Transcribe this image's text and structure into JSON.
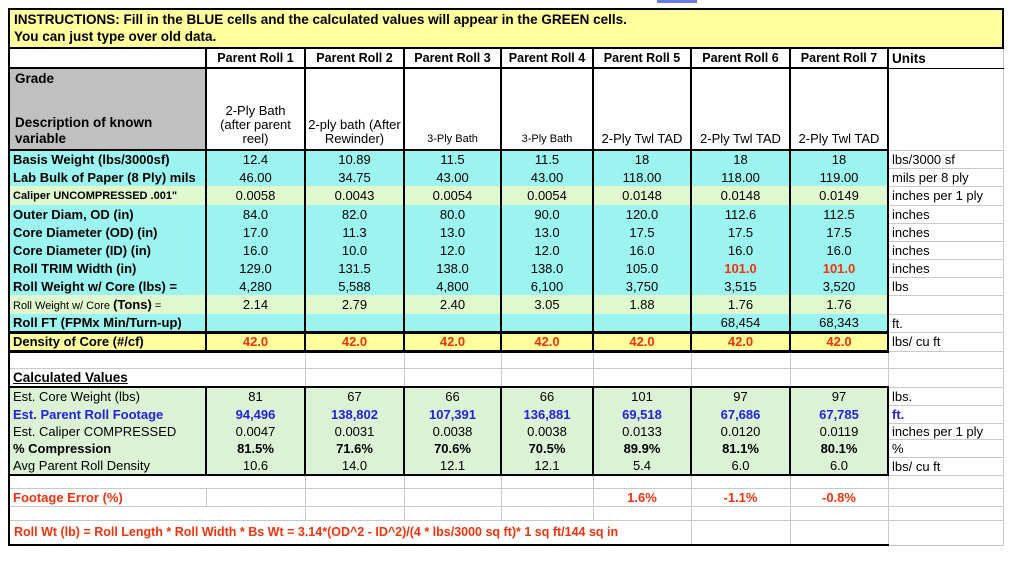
{
  "banner": {
    "line1": "INSTRUCTIONS: Fill in the BLUE cells and the calculated values will appear in the GREEN cells.",
    "line2": "You can just type over old data."
  },
  "header": {
    "columns": [
      "Parent Roll 1",
      "Parent Roll 2",
      "Parent Roll 3",
      "Parent Roll 4",
      "Parent Roll 5",
      "Parent Roll 6",
      "Parent Roll 7"
    ],
    "units": "Units"
  },
  "grade": {
    "label_line1": "Grade",
    "label_line2": "Description of known variable",
    "values": [
      "2-Ply Bath (after parent reel)",
      "2-ply bath (After Rewinder)",
      "3-Ply Bath",
      "3-Ply Bath",
      "2-Ply Twl TAD",
      "2-Ply Twl TAD",
      "2-Ply Twl TAD"
    ]
  },
  "rows": [
    {
      "label": "Basis Weight (lbs/3000sf)",
      "values": [
        "12.4",
        "10.89",
        "11.5",
        "11.5",
        "18",
        "18",
        "18"
      ],
      "unit": "lbs/3000 sf",
      "bg": "cyan"
    },
    {
      "label": "Lab Bulk of Paper (8 Ply) mils",
      "values": [
        "46.00",
        "34.75",
        "43.00",
        "43.00",
        "118.00",
        "118.00",
        "119.00"
      ],
      "unit": "mils per 8 ply",
      "bg": "cyan"
    },
    {
      "label": "Caliper UNCOMPRESSED .001\"",
      "values": [
        "0.0058",
        "0.0043",
        "0.0054",
        "0.0054",
        "0.0148",
        "0.0148",
        "0.0149"
      ],
      "unit": "inches per 1 ply",
      "bg": "pgreen",
      "label_small": true
    },
    {
      "label": "Outer Diam, OD (in)",
      "values": [
        "84.0",
        "82.0",
        "80.0",
        "90.0",
        "120.0",
        "112.6",
        "112.5"
      ],
      "unit": "inches",
      "bg": "cyan"
    },
    {
      "label": "Core Diameter (OD) (in)",
      "values": [
        "17.0",
        "11.3",
        "13.0",
        "13.0",
        "17.5",
        "17.5",
        "17.5"
      ],
      "unit": "inches",
      "bg": "cyan"
    },
    {
      "label": "Core Diameter (ID)  (in)",
      "values": [
        "16.0",
        "10.0",
        "12.0",
        "12.0",
        "16.0",
        "16.0",
        "16.0"
      ],
      "unit": "inches",
      "bg": "cyan"
    },
    {
      "label": "Roll TRIM Width (in)",
      "values": [
        "129.0",
        "131.5",
        "138.0",
        "138.0",
        "105.0",
        "101.0",
        "101.0"
      ],
      "unit": "inches",
      "bg": "cyan",
      "red_values": [
        5,
        6
      ]
    },
    {
      "label": "Roll Weight w/ Core (lbs) =",
      "values": [
        "4,280",
        "5,588",
        "4,800",
        "6,100",
        "3,750",
        "3,515",
        "3,520"
      ],
      "unit": "lbs",
      "bg": "cyan",
      "comments": [
        5,
        6
      ]
    },
    {
      "label_parts": {
        "pre": "Roll Weight w/ Core ",
        "bold": "(Tons)",
        "post": " ="
      },
      "values": [
        "2.14",
        "2.79",
        "2.40",
        "3.05",
        "1.88",
        "1.76",
        "1.76"
      ],
      "unit": "",
      "bg": "pgreen"
    },
    {
      "label": "Roll FT (FPMx Min/Turn-up)",
      "values": [
        "",
        "",
        "",
        "",
        "",
        "68,454",
        "68,343"
      ],
      "unit": "ft.",
      "bg": "cyan"
    }
  ],
  "density": {
    "label": "Density of Core (#/cf)",
    "values": [
      "42.0",
      "42.0",
      "42.0",
      "42.0",
      "42.0",
      "42.0",
      "42.0"
    ],
    "unit": "lbs/ cu ft"
  },
  "calc": {
    "header_label": "Calculated Values",
    "rows": [
      {
        "label": "Est. Core Weight (lbs)",
        "values": [
          "81",
          "67",
          "66",
          "66",
          "101",
          "97",
          "97"
        ],
        "unit": "lbs."
      },
      {
        "label": "Est. Parent Roll Footage",
        "values": [
          "94,496",
          "138,802",
          "107,391",
          "136,881",
          "69,518",
          "67,686",
          "67,785"
        ],
        "unit": "ft.",
        "blue": true
      },
      {
        "label": "Est. Caliper COMPRESSED",
        "values": [
          "0.0047",
          "0.0031",
          "0.0038",
          "0.0038",
          "0.0133",
          "0.0120",
          "0.0119"
        ],
        "unit": "inches per 1 ply"
      },
      {
        "label": "% Compression",
        "values": [
          "81.5%",
          "71.6%",
          "70.6%",
          "70.5%",
          "89.9%",
          "81.1%",
          "80.1%"
        ],
        "unit": "%",
        "bold": true
      },
      {
        "label": "Avg Parent Roll Density",
        "values": [
          "10.6",
          "14.0",
          "12.1",
          "12.1",
          "5.4",
          "6.0",
          "6.0"
        ],
        "unit": "lbs/ cu ft"
      }
    ]
  },
  "footer": {
    "footage_error": {
      "label": "Footage Error (%)",
      "values": [
        "",
        "",
        "",
        "",
        "1.6%",
        "-1.1%",
        "-0.8%"
      ]
    },
    "formula": "Roll Wt (lb) = Roll Length * Roll Width * Bs Wt = 3.14*(OD^2 - ID^2)/(4 * lbs/3000 sq ft)* 1 sq ft/144 sq in"
  },
  "colors": {
    "input_cell": "#9CF4F0",
    "calc_cell": "#DBF2D4",
    "highlight_row": "#E0F8CE",
    "banner": "#FFFE9C",
    "grade_header_cell": "#C0C0C0",
    "alert_text": "#F2330D",
    "calc_text": "#2222DD"
  }
}
